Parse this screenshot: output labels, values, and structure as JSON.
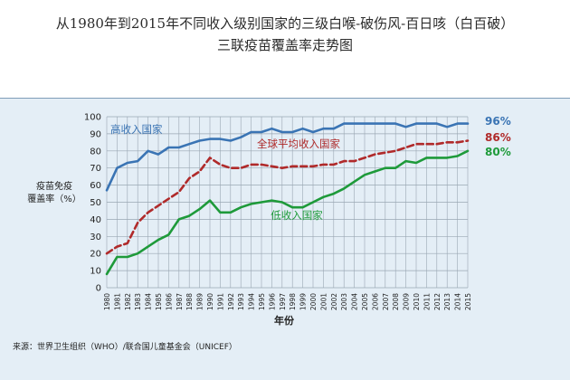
{
  "title_line1": "从1980年到2015年不同收入级别国家的三级白喉-破伤风-百日咳（白百破）",
  "title_line2": "三联疫苗覆盖率走势图",
  "source": "来源：世界卫生组织（WHO）/联合国儿童基金会（UNICEF）",
  "chart_data": {
    "type": "line",
    "title": "从1980年到2015年不同收入级别国家的三级白喉-破伤风-百日咳（白百破）三联疫苗覆盖率走势图",
    "xlabel": "年份",
    "ylabel_line1": "疫苗免疫",
    "ylabel_line2": "覆盖率（%）",
    "ylim": [
      0,
      100
    ],
    "y_ticks": [
      0,
      10,
      20,
      30,
      40,
      50,
      60,
      70,
      80,
      90,
      100
    ],
    "grid": true,
    "x": [
      1980,
      1981,
      1982,
      1983,
      1984,
      1985,
      1986,
      1987,
      1988,
      1989,
      1990,
      1991,
      1992,
      1993,
      1994,
      1995,
      1996,
      1997,
      1998,
      1999,
      2000,
      2001,
      2002,
      2003,
      2004,
      2005,
      2006,
      2007,
      2008,
      2009,
      2010,
      2011,
      2012,
      2013,
      2014,
      2015
    ],
    "series": [
      {
        "name": "高收入国家",
        "end_label": "96%",
        "color": "#3a74b4",
        "dash": "solid",
        "values": [
          57,
          70,
          73,
          74,
          80,
          78,
          82,
          82,
          84,
          86,
          87,
          87,
          86,
          88,
          91,
          91,
          93,
          91,
          91,
          93,
          91,
          93,
          93,
          96,
          96,
          96,
          96,
          96,
          96,
          94,
          96,
          96,
          96,
          94,
          96,
          96
        ]
      },
      {
        "name": "全球平均收入国家",
        "end_label": "86%",
        "color": "#b02a2a",
        "dash": "dashed",
        "values": [
          20,
          24,
          26,
          38,
          44,
          48,
          52,
          56,
          64,
          68,
          76,
          72,
          70,
          70,
          72,
          72,
          71,
          70,
          71,
          71,
          71,
          72,
          72,
          74,
          74,
          76,
          78,
          79,
          80,
          82,
          84,
          84,
          84,
          85,
          85,
          86
        ]
      },
      {
        "name": "低收入国家",
        "end_label": "80%",
        "color": "#1e9a3a",
        "dash": "solid",
        "values": [
          8,
          18,
          18,
          20,
          24,
          28,
          31,
          40,
          42,
          46,
          51,
          44,
          44,
          47,
          49,
          50,
          51,
          50,
          47,
          47,
          50,
          53,
          55,
          58,
          62,
          66,
          68,
          70,
          70,
          74,
          73,
          76,
          76,
          76,
          77,
          80
        ]
      }
    ]
  }
}
